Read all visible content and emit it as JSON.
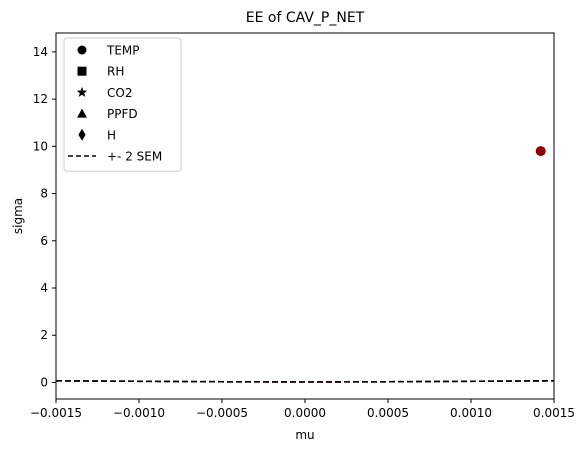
{
  "chart_data": {
    "type": "scatter",
    "title": "EE of CAV_P_NET",
    "xlabel": "mu",
    "ylabel": "sigma",
    "xlim": [
      -0.0015,
      0.0015
    ],
    "ylim": [
      -0.7,
      14.8
    ],
    "xticks": [
      {
        "value": -0.0015,
        "label": "−0.0015"
      },
      {
        "value": -0.001,
        "label": "−0.0010"
      },
      {
        "value": -0.0005,
        "label": "−0.0005"
      },
      {
        "value": 0.0,
        "label": "0.0000"
      },
      {
        "value": 0.0005,
        "label": "0.0005"
      },
      {
        "value": 0.001,
        "label": "0.0010"
      },
      {
        "value": 0.0015,
        "label": "0.0015"
      }
    ],
    "yticks": [
      {
        "value": 0,
        "label": "0"
      },
      {
        "value": 2,
        "label": "2"
      },
      {
        "value": 4,
        "label": "4"
      },
      {
        "value": 6,
        "label": "6"
      },
      {
        "value": 8,
        "label": "8"
      },
      {
        "value": 10,
        "label": "10"
      },
      {
        "value": 12,
        "label": "12"
      },
      {
        "value": 14,
        "label": "14"
      }
    ],
    "grid": false,
    "legend": {
      "placement": "top-left",
      "entries": [
        {
          "label": "TEMP",
          "marker": "circle"
        },
        {
          "label": "RH",
          "marker": "square"
        },
        {
          "label": "CO2",
          "marker": "star"
        },
        {
          "label": "PPFD",
          "marker": "triangle"
        },
        {
          "label": "H",
          "marker": "diamond"
        },
        {
          "label": "+- 2 SEM",
          "marker": "dashed-line"
        }
      ]
    },
    "points": [
      {
        "x": 0.00142,
        "y": 9.8,
        "marker": "circle",
        "color": "#8b0000"
      }
    ],
    "sem_lines": [
      {
        "color": "#8b0000",
        "x": [
          -0.0015,
          -0.001,
          -0.0005,
          0.0,
          0.0005,
          0.001,
          0.0015
        ],
        "y": [
          0.07,
          0.05,
          0.03,
          0.02,
          0.03,
          0.05,
          0.07
        ]
      },
      {
        "color": "#000000",
        "x": [
          -0.0015,
          -0.001,
          -0.0005,
          0.0,
          0.0005,
          0.001,
          0.0015
        ],
        "y": [
          0.07,
          0.05,
          0.03,
          0.02,
          0.03,
          0.05,
          0.07
        ]
      }
    ]
  }
}
